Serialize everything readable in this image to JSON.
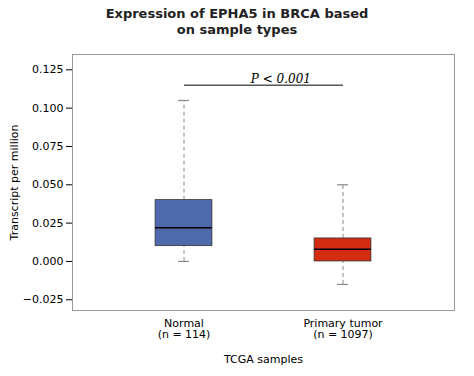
{
  "chart_data": {
    "type": "box",
    "title": "Expression of EPHA5 in BRCA based\non sample types",
    "xlabel": "TCGA samples",
    "ylabel": "Transcript per million",
    "categories": [
      "Normal",
      "Primary tumor"
    ],
    "category_sublabels": [
      "(n = 114)",
      "(n = 1097)"
    ],
    "q1": [
      0.01,
      0.0
    ],
    "median": [
      0.022,
      0.008
    ],
    "q3": [
      0.04,
      0.015
    ],
    "whislo": [
      0.0,
      -0.015
    ],
    "whishi": [
      0.105,
      0.05
    ],
    "colors": [
      "#4e6aad",
      "#d42b13"
    ],
    "ylim": [
      -0.032,
      0.135
    ],
    "yticks": [
      {
        "value": -0.025,
        "label": "−0.025"
      },
      {
        "value": 0,
        "label": "0.000"
      },
      0.025,
      {
        "value": 0.05,
        "label": "0.050"
      },
      0.075,
      {
        "value": 0.1,
        "label": "0.100"
      },
      0.125
    ],
    "annotations": [
      {
        "text": "P < 0.001",
        "y": 0.116,
        "bar_y": 0.115,
        "from": "Normal",
        "to": "Primary tumor"
      }
    ],
    "grid": false
  }
}
